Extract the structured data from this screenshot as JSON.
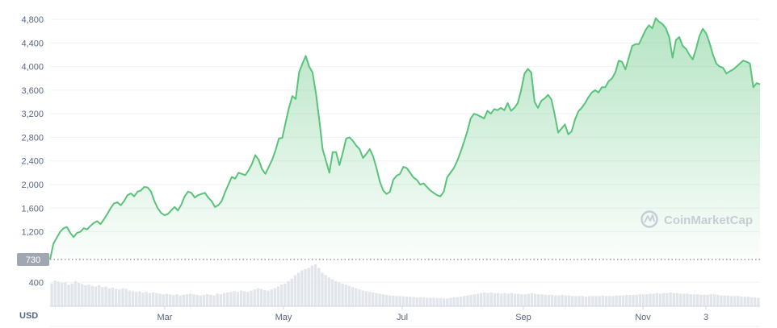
{
  "watermark": "CoinMarketCap",
  "currency_label": "USD",
  "colors": {
    "line": "#5ac37a",
    "volume": "#e2e5eb",
    "grid": "#eff2f5",
    "text": "#58667e",
    "low_tag": "#a1a7b0"
  },
  "chart_data": {
    "type": "area",
    "price_axis": {
      "ylim": [
        730,
        4900
      ],
      "ticks": [
        1200,
        1600,
        2000,
        2400,
        2800,
        3200,
        3600,
        4000,
        4400,
        4800
      ],
      "low_marker": 730
    },
    "volume_axis": {
      "ticks": [
        400
      ]
    },
    "x_labels": [
      "Mar",
      "May",
      "Jul",
      "Sep",
      "Nov",
      "3"
    ],
    "series": [
      {
        "values": [
          730,
          1000,
          1100,
          1200,
          1260,
          1280,
          1180,
          1110,
          1180,
          1200,
          1260,
          1240,
          1300,
          1350,
          1380,
          1330,
          1410,
          1500,
          1600,
          1680,
          1700,
          1650,
          1720,
          1820,
          1850,
          1800,
          1880,
          1900,
          1960,
          1950,
          1880,
          1720,
          1600,
          1520,
          1480,
          1500,
          1560,
          1620,
          1560,
          1660,
          1800,
          1880,
          1860,
          1780,
          1820,
          1840,
          1860,
          1780,
          1720,
          1620,
          1650,
          1720,
          1870,
          2000,
          2130,
          2100,
          2200,
          2180,
          2160,
          2240,
          2350,
          2500,
          2420,
          2260,
          2180,
          2300,
          2420,
          2580,
          2780,
          2790,
          3050,
          3300,
          3500,
          3450,
          3900,
          4050,
          4180,
          4000,
          3900,
          3550,
          3100,
          2600,
          2400,
          2200,
          2550,
          2550,
          2330,
          2540,
          2780,
          2800,
          2740,
          2660,
          2600,
          2450,
          2520,
          2600,
          2480,
          2280,
          2050,
          1900,
          1840,
          1880,
          2080,
          2150,
          2180,
          2300,
          2280,
          2200,
          2120,
          2080,
          2000,
          2020,
          1960,
          1900,
          1860,
          1820,
          1800,
          1880,
          2120,
          2200,
          2280,
          2400,
          2550,
          2720,
          2900,
          3120,
          3200,
          3180,
          3150,
          3120,
          3250,
          3200,
          3280,
          3260,
          3300,
          3260,
          3380,
          3250,
          3300,
          3380,
          3600,
          3880,
          3960,
          3900,
          3400,
          3300,
          3420,
          3460,
          3520,
          3440,
          3180,
          2880,
          2950,
          3020,
          2850,
          2900,
          3100,
          3240,
          3300,
          3380,
          3480,
          3560,
          3600,
          3560,
          3650,
          3650,
          3750,
          3800,
          3900,
          4100,
          4080,
          3950,
          4150,
          4350,
          4380,
          4380,
          4500,
          4620,
          4700,
          4650,
          4820,
          4760,
          4720,
          4650,
          4500,
          4150,
          4450,
          4500,
          4350,
          4300,
          4200,
          4120,
          4300,
          4520,
          4640,
          4560,
          4400,
          4200,
          4050,
          4000,
          3980,
          3880,
          3920,
          3950,
          4000,
          4050,
          4100,
          4080,
          4050,
          3650,
          3720,
          3700
        ]
      },
      {
        "name": "volume",
        "values": [
          380,
          430,
          410,
          390,
          400,
          360,
          380,
          420,
          390,
          370,
          350,
          360,
          340,
          330,
          350,
          320,
          330,
          300,
          310,
          290,
          280,
          300,
          290,
          260,
          250,
          240,
          250,
          230,
          240,
          220,
          230,
          220,
          210,
          200,
          210,
          200,
          190,
          200,
          180,
          190,
          200,
          210,
          200,
          190,
          180,
          190,
          200,
          190,
          180,
          210,
          200,
          220,
          230,
          240,
          250,
          240,
          260,
          250,
          240,
          260,
          280,
          300,
          290,
          270,
          260,
          280,
          300,
          330,
          360,
          380,
          420,
          460,
          520,
          560,
          600,
          620,
          640,
          680,
          700,
          640,
          560,
          520,
          480,
          450,
          420,
          400,
          380,
          360,
          340,
          320,
          300,
          280,
          260,
          250,
          240,
          230,
          220,
          210,
          200,
          190,
          180,
          175,
          170,
          170,
          165,
          160,
          160,
          155,
          150,
          150,
          145,
          140,
          140,
          140,
          135,
          135,
          130,
          130,
          140,
          150,
          150,
          160,
          170,
          180,
          190,
          200,
          210,
          220,
          230,
          220,
          230,
          220,
          220,
          210,
          220,
          210,
          220,
          210,
          210,
          200,
          200,
          210,
          220,
          210,
          200,
          200,
          190,
          190,
          190,
          180,
          180,
          190,
          180,
          180,
          170,
          170,
          170,
          170,
          160,
          170,
          170,
          170,
          170,
          180,
          170,
          170,
          170,
          180,
          180,
          180,
          190,
          190,
          190,
          190,
          200,
          200,
          200,
          210,
          210,
          220,
          210,
          220,
          220,
          230,
          220,
          220,
          210,
          210,
          210,
          200,
          200,
          200,
          190,
          190,
          190,
          200,
          200,
          190,
          180,
          180,
          180,
          170,
          170,
          170,
          160,
          160,
          160,
          150,
          150,
          140
        ]
      }
    ]
  }
}
